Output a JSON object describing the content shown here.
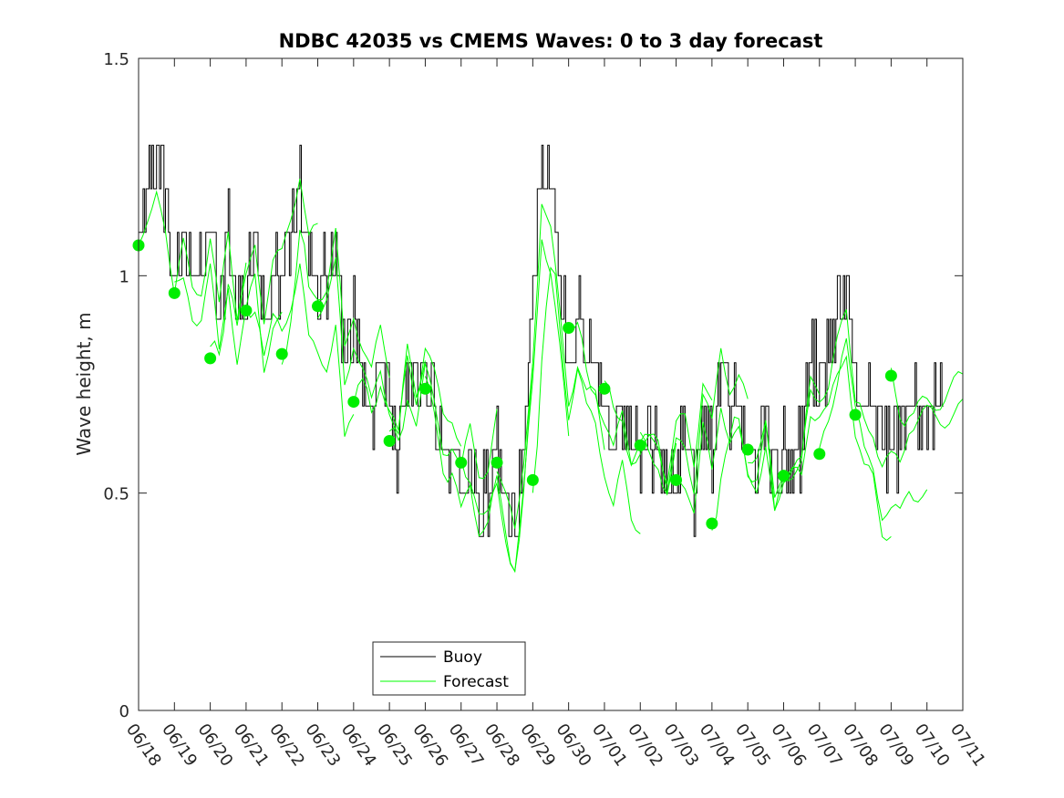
{
  "chart_data": {
    "type": "line",
    "title": "NDBC 42035 vs CMEMS Waves: 0 to 3 day forecast",
    "xlabel": "",
    "ylabel": "Wave height, m",
    "ylim": [
      0,
      1.5
    ],
    "yticks": [
      0,
      0.5,
      1,
      1.5
    ],
    "ytick_labels": [
      "0",
      "0.5",
      "1",
      "1.5"
    ],
    "xlim": [
      "06/18",
      "07/11"
    ],
    "xtick_labels": [
      "06/18",
      "06/19",
      "06/20",
      "06/21",
      "06/22",
      "06/23",
      "06/24",
      "06/25",
      "06/26",
      "06/27",
      "06/28",
      "06/29",
      "06/30",
      "07/01",
      "07/02",
      "07/03",
      "07/04",
      "07/05",
      "07/06",
      "07/07",
      "07/08",
      "07/09",
      "07/10",
      "07/11"
    ],
    "grid": false,
    "legend": {
      "placement": "bottom-center",
      "entries": [
        "Buoy",
        "Forecast"
      ]
    },
    "colors": {
      "buoy": "#000000",
      "forecast": "#00ff00",
      "forecast_marker": "#00ee00"
    },
    "series": [
      {
        "name": "Buoy",
        "x": [
          "06/18 00:00",
          "06/18 06:00",
          "06/18 12:00",
          "06/18 18:00",
          "06/19 00:00",
          "06/19 06:00",
          "06/19 12:00",
          "06/19 18:00",
          "06/20 00:00",
          "06/20 06:00",
          "06/20 12:00",
          "06/20 18:00",
          "06/21 00:00",
          "06/21 06:00",
          "06/21 12:00",
          "06/21 18:00",
          "06/22 00:00",
          "06/22 06:00",
          "06/22 12:00",
          "06/22 18:00",
          "06/23 00:00",
          "06/23 06:00",
          "06/23 12:00",
          "06/23 18:00",
          "06/24 00:00",
          "06/24 06:00",
          "06/24 12:00",
          "06/24 18:00",
          "06/25 00:00",
          "06/25 06:00",
          "06/25 12:00",
          "06/25 18:00",
          "06/26 00:00",
          "06/26 06:00",
          "06/26 12:00",
          "06/26 18:00",
          "06/27 00:00",
          "06/27 06:00",
          "06/27 12:00",
          "06/27 18:00",
          "06/28 00:00",
          "06/28 06:00",
          "06/28 12:00",
          "06/28 18:00",
          "06/29 00:00",
          "06/29 06:00",
          "06/29 12:00",
          "06/29 18:00",
          "06/30 00:00",
          "06/30 06:00",
          "06/30 12:00",
          "06/30 18:00",
          "07/01 00:00",
          "07/01 06:00",
          "07/01 12:00",
          "07/01 18:00",
          "07/02 00:00",
          "07/02 06:00",
          "07/02 12:00",
          "07/02 18:00",
          "07/03 00:00",
          "07/03 06:00",
          "07/03 12:00",
          "07/03 18:00",
          "07/04 00:00",
          "07/04 06:00",
          "07/04 12:00",
          "07/04 18:00",
          "07/05 00:00",
          "07/05 06:00",
          "07/05 12:00",
          "07/05 18:00",
          "07/06 00:00",
          "07/06 06:00",
          "07/06 12:00",
          "07/06 18:00",
          "07/07 00:00",
          "07/07 06:00",
          "07/07 12:00",
          "07/07 18:00",
          "07/08 00:00",
          "07/08 06:00",
          "07/08 12:00",
          "07/08 18:00",
          "07/09 00:00",
          "07/09 06:00",
          "07/09 12:00",
          "07/09 18:00",
          "07/10 00:00",
          "07/10 06:00"
        ],
        "values": [
          1.1,
          1.2,
          1.3,
          1.2,
          1.0,
          1.1,
          1.0,
          1.0,
          1.1,
          0.9,
          1.1,
          0.9,
          1.0,
          1.1,
          0.9,
          1.0,
          1.0,
          1.1,
          1.2,
          1.0,
          1.0,
          1.0,
          1.1,
          0.8,
          0.9,
          0.8,
          0.7,
          0.8,
          0.7,
          0.6,
          0.8,
          0.7,
          0.8,
          0.7,
          0.6,
          0.6,
          0.5,
          0.6,
          0.5,
          0.5,
          0.6,
          0.5,
          0.4,
          0.6,
          0.9,
          1.3,
          1.2,
          1.0,
          0.8,
          0.9,
          0.8,
          0.8,
          0.7,
          0.6,
          0.7,
          0.6,
          0.6,
          0.6,
          0.6,
          0.5,
          0.6,
          0.6,
          0.5,
          0.7,
          0.6,
          0.8,
          0.7,
          0.7,
          0.6,
          0.6,
          0.7,
          0.5,
          0.6,
          0.6,
          0.6,
          0.8,
          0.8,
          0.8,
          0.9,
          1.0,
          0.8,
          0.7,
          0.7,
          0.6,
          0.6,
          0.6,
          0.7,
          0.7,
          0.7,
          0.7
        ]
      },
      {
        "name": "Forecast",
        "x": [
          "06/18",
          "06/19",
          "06/20",
          "06/21",
          "06/22",
          "06/23",
          "06/24",
          "06/25",
          "06/26",
          "06/27",
          "06/28",
          "06/29",
          "06/30",
          "07/01",
          "07/02",
          "07/03",
          "07/04",
          "07/05",
          "07/06",
          "07/07",
          "07/08",
          "07/09"
        ],
        "values": [
          1.07,
          0.96,
          0.81,
          0.92,
          0.82,
          0.93,
          0.71,
          0.62,
          0.74,
          0.57,
          0.57,
          0.53,
          0.88,
          0.74,
          0.61,
          0.53,
          0.43,
          0.6,
          0.54,
          0.59,
          0.68,
          0.77
        ]
      }
    ]
  }
}
